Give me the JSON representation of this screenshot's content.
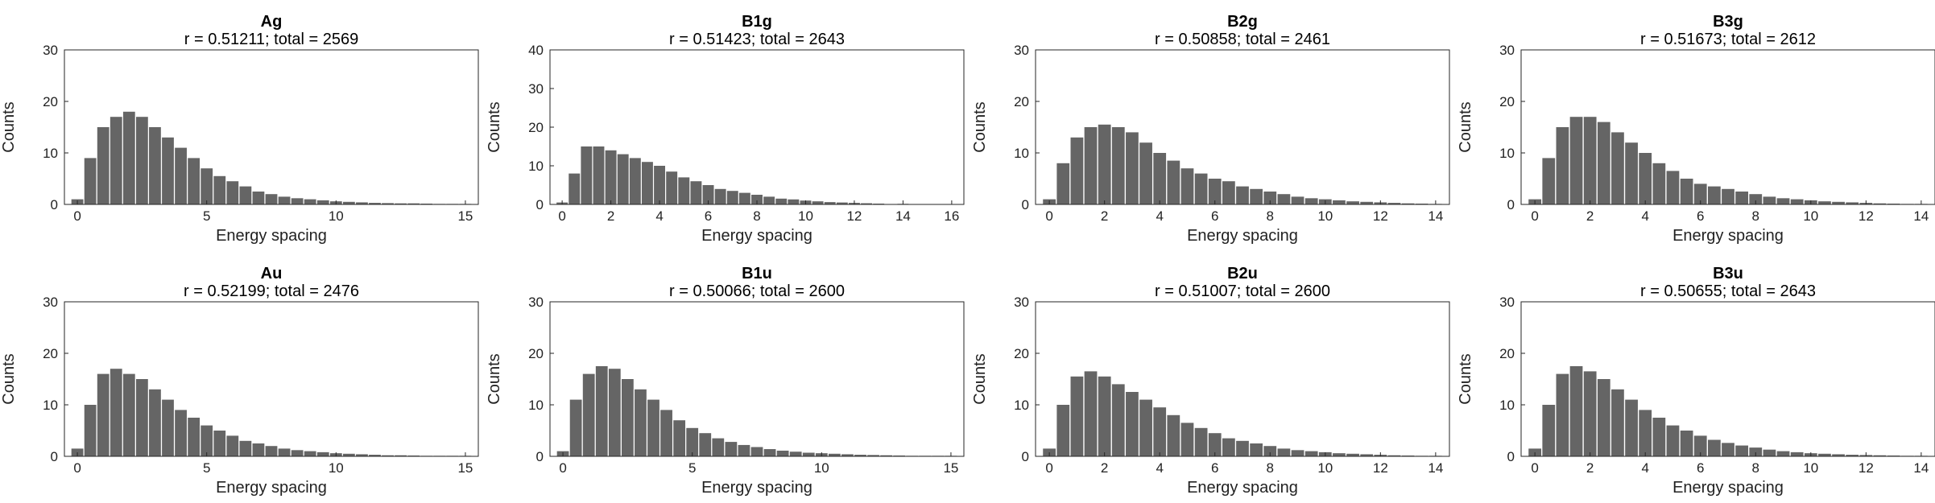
{
  "chart_data": [
    {
      "type": "bar",
      "title": "Ag",
      "subtitle": "r = 0.51211; total = 2569",
      "xlabel": "Energy spacing",
      "ylabel": "Counts",
      "xlim": [
        -0.5,
        15.5
      ],
      "ylim": [
        0,
        30
      ],
      "xticks": [
        0,
        5,
        10,
        15
      ],
      "yticks": [
        0,
        10,
        20,
        30
      ],
      "x": [
        0,
        0.5,
        1,
        1.5,
        2,
        2.5,
        3,
        3.5,
        4,
        4.5,
        5,
        5.5,
        6,
        6.5,
        7,
        7.5,
        8,
        8.5,
        9,
        9.5,
        10,
        10.5,
        11,
        11.5,
        12,
        12.5,
        13,
        13.5,
        14,
        14.5,
        15
      ],
      "values": [
        1,
        9,
        15,
        17,
        18,
        17,
        15,
        13,
        11,
        9,
        7,
        5.5,
        4.5,
        3.5,
        2.5,
        2,
        1.5,
        1.2,
        1,
        0.8,
        0.6,
        0.5,
        0.4,
        0.3,
        0.25,
        0.2,
        0.2,
        0.15,
        0.1,
        0.1,
        0.1
      ],
      "color": "#656565"
    },
    {
      "type": "bar",
      "title": "B1g",
      "subtitle": "r = 0.51423; total = 2643",
      "xlabel": "Energy spacing",
      "ylabel": "Counts",
      "xlim": [
        -0.5,
        16.5
      ],
      "ylim": [
        0,
        40
      ],
      "xticks": [
        0,
        2,
        4,
        6,
        8,
        10,
        12,
        14,
        16
      ],
      "yticks": [
        0,
        10,
        20,
        30,
        40
      ],
      "x": [
        0,
        0.5,
        1,
        1.5,
        2,
        2.5,
        3,
        3.5,
        4,
        4.5,
        5,
        5.5,
        6,
        6.5,
        7,
        7.5,
        8,
        8.5,
        9,
        9.5,
        10,
        10.5,
        11,
        11.5,
        12,
        12.5,
        13,
        14,
        15,
        16
      ],
      "values": [
        0.5,
        8,
        15,
        15,
        14,
        13,
        12,
        11,
        10,
        8.5,
        7,
        6,
        5,
        4,
        3.5,
        3,
        2.5,
        2,
        1.5,
        1.3,
        1,
        0.8,
        0.6,
        0.5,
        0.4,
        0.3,
        0.2,
        0.15,
        0.1,
        0.1
      ],
      "color": "#656565"
    },
    {
      "type": "bar",
      "title": "B2g",
      "subtitle": "r = 0.50858; total = 2461",
      "xlabel": "Energy spacing",
      "ylabel": "Counts",
      "xlim": [
        -0.5,
        14.5
      ],
      "ylim": [
        0,
        30
      ],
      "xticks": [
        0,
        2,
        4,
        6,
        8,
        10,
        12,
        14
      ],
      "yticks": [
        0,
        10,
        20,
        30
      ],
      "x": [
        0,
        0.5,
        1,
        1.5,
        2,
        2.5,
        3,
        3.5,
        4,
        4.5,
        5,
        5.5,
        6,
        6.5,
        7,
        7.5,
        8,
        8.5,
        9,
        9.5,
        10,
        10.5,
        11,
        11.5,
        12,
        12.5,
        13,
        13.5,
        14
      ],
      "values": [
        1,
        8,
        13,
        15,
        15.5,
        15,
        14,
        12,
        10,
        8.5,
        7,
        6,
        5,
        4.5,
        3.5,
        3,
        2.5,
        2,
        1.5,
        1.2,
        1,
        0.8,
        0.6,
        0.5,
        0.4,
        0.3,
        0.2,
        0.15,
        0.1
      ],
      "color": "#656565"
    },
    {
      "type": "bar",
      "title": "B3g",
      "subtitle": "r = 0.51673; total = 2612",
      "xlabel": "Energy spacing",
      "ylabel": "Counts",
      "xlim": [
        -0.5,
        14.5
      ],
      "ylim": [
        0,
        30
      ],
      "xticks": [
        0,
        2,
        4,
        6,
        8,
        10,
        12,
        14
      ],
      "yticks": [
        0,
        10,
        20,
        30
      ],
      "x": [
        0,
        0.5,
        1,
        1.5,
        2,
        2.5,
        3,
        3.5,
        4,
        4.5,
        5,
        5.5,
        6,
        6.5,
        7,
        7.5,
        8,
        8.5,
        9,
        9.5,
        10,
        10.5,
        11,
        11.5,
        12,
        12.5,
        13,
        13.5,
        14
      ],
      "values": [
        1,
        9,
        15,
        17,
        17,
        16,
        14,
        12,
        10,
        8,
        6.5,
        5,
        4,
        3.5,
        3,
        2.5,
        2,
        1.5,
        1.2,
        1,
        0.8,
        0.6,
        0.5,
        0.4,
        0.3,
        0.2,
        0.15,
        0.1,
        0.1
      ],
      "color": "#656565"
    },
    {
      "type": "bar",
      "title": "Au",
      "subtitle": "r = 0.52199; total = 2476",
      "xlabel": "Energy spacing",
      "ylabel": "Counts",
      "xlim": [
        -0.5,
        15.5
      ],
      "ylim": [
        0,
        30
      ],
      "xticks": [
        0,
        5,
        10,
        15
      ],
      "yticks": [
        0,
        10,
        20,
        30
      ],
      "x": [
        0,
        0.5,
        1,
        1.5,
        2,
        2.5,
        3,
        3.5,
        4,
        4.5,
        5,
        5.5,
        6,
        6.5,
        7,
        7.5,
        8,
        8.5,
        9,
        9.5,
        10,
        10.5,
        11,
        11.5,
        12,
        12.5,
        13,
        13.5,
        14,
        14.5,
        15
      ],
      "values": [
        1.5,
        10,
        16,
        17,
        16,
        15,
        13,
        11,
        9,
        7.5,
        6,
        5,
        4,
        3,
        2.5,
        2,
        1.5,
        1.2,
        1,
        0.8,
        0.6,
        0.5,
        0.4,
        0.3,
        0.2,
        0.2,
        0.15,
        0.1,
        0.1,
        0.1,
        0.1
      ],
      "color": "#656565"
    },
    {
      "type": "bar",
      "title": "B1u",
      "subtitle": "r = 0.50066; total = 2600",
      "xlabel": "Energy spacing",
      "ylabel": "Counts",
      "xlim": [
        -0.5,
        15.5
      ],
      "ylim": [
        0,
        30
      ],
      "xticks": [
        0,
        5,
        10,
        15
      ],
      "yticks": [
        0,
        10,
        20,
        30
      ],
      "x": [
        0,
        0.5,
        1,
        1.5,
        2,
        2.5,
        3,
        3.5,
        4,
        4.5,
        5,
        5.5,
        6,
        6.5,
        7,
        7.5,
        8,
        8.5,
        9,
        9.5,
        10,
        10.5,
        11,
        11.5,
        12,
        12.5,
        13,
        13.5,
        14,
        14.5,
        15
      ],
      "values": [
        1,
        11,
        16,
        17.5,
        17,
        15,
        13,
        11,
        9,
        7,
        5.5,
        4.5,
        3.5,
        2.8,
        2.2,
        1.8,
        1.4,
        1.1,
        0.9,
        0.7,
        0.6,
        0.5,
        0.4,
        0.3,
        0.25,
        0.2,
        0.15,
        0.1,
        0.1,
        0.1,
        0.1
      ],
      "color": "#656565"
    },
    {
      "type": "bar",
      "title": "B2u",
      "subtitle": "r = 0.51007; total = 2600",
      "xlabel": "Energy spacing",
      "ylabel": "Counts",
      "xlim": [
        -0.5,
        14.5
      ],
      "ylim": [
        0,
        30
      ],
      "xticks": [
        0,
        2,
        4,
        6,
        8,
        10,
        12,
        14
      ],
      "yticks": [
        0,
        10,
        20,
        30
      ],
      "x": [
        0,
        0.5,
        1,
        1.5,
        2,
        2.5,
        3,
        3.5,
        4,
        4.5,
        5,
        5.5,
        6,
        6.5,
        7,
        7.5,
        8,
        8.5,
        9,
        9.5,
        10,
        10.5,
        11,
        11.5,
        12,
        12.5,
        13,
        13.5,
        14
      ],
      "values": [
        1.5,
        10,
        15.5,
        16.5,
        15.5,
        14,
        12.5,
        11,
        9.5,
        8,
        6.5,
        5.5,
        4.5,
        3.5,
        3,
        2.5,
        2,
        1.5,
        1.2,
        1,
        0.8,
        0.6,
        0.5,
        0.4,
        0.3,
        0.2,
        0.15,
        0.1,
        0.1
      ],
      "color": "#656565"
    },
    {
      "type": "bar",
      "title": "B3u",
      "subtitle": "r = 0.50655; total = 2643",
      "xlabel": "Energy spacing",
      "ylabel": "Counts",
      "xlim": [
        -0.5,
        14.5
      ],
      "ylim": [
        0,
        30
      ],
      "xticks": [
        0,
        2,
        4,
        6,
        8,
        10,
        12,
        14
      ],
      "yticks": [
        0,
        10,
        20,
        30
      ],
      "x": [
        0,
        0.5,
        1,
        1.5,
        2,
        2.5,
        3,
        3.5,
        4,
        4.5,
        5,
        5.5,
        6,
        6.5,
        7,
        7.5,
        8,
        8.5,
        9,
        9.5,
        10,
        10.5,
        11,
        11.5,
        12,
        12.5,
        13,
        13.5,
        14
      ],
      "values": [
        1.5,
        10,
        16,
        17.5,
        16.5,
        15,
        13,
        11,
        9,
        7.5,
        6,
        5,
        4,
        3.2,
        2.6,
        2.1,
        1.7,
        1.3,
        1,
        0.8,
        0.6,
        0.5,
        0.4,
        0.3,
        0.25,
        0.2,
        0.15,
        0.1,
        0.1
      ],
      "color": "#656565"
    }
  ]
}
